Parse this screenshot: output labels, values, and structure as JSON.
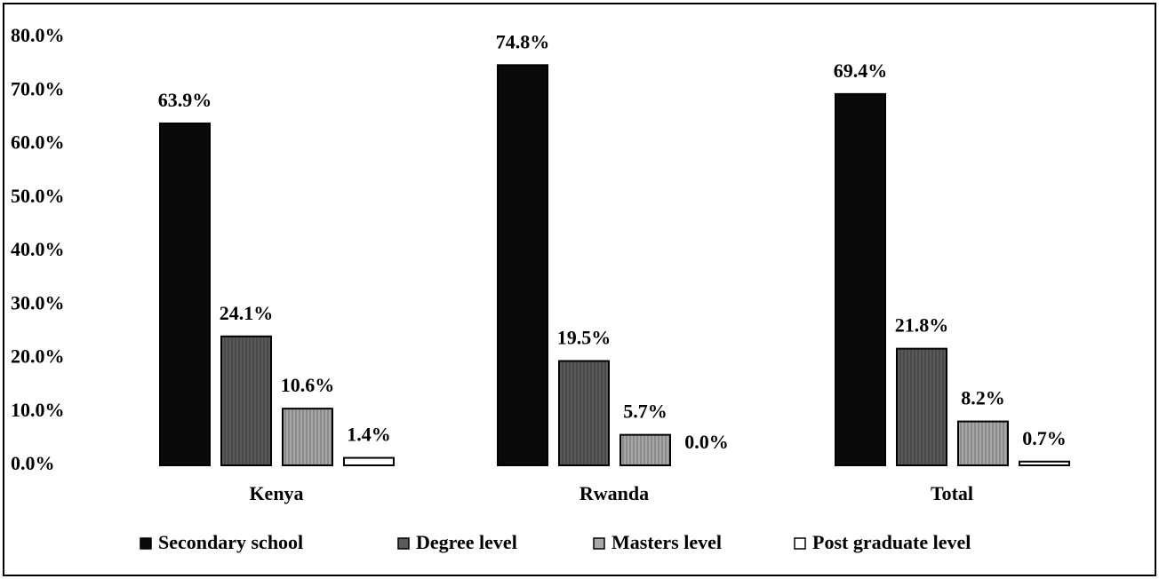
{
  "chart_data": {
    "type": "bar",
    "categories": [
      "Kenya",
      "Rwanda",
      "Total"
    ],
    "series": [
      {
        "name": "Secondary school",
        "color": "#0a0a0a",
        "values": [
          63.9,
          74.8,
          69.4
        ],
        "value_labels": [
          "63.9%",
          "74.8%",
          "69.4%"
        ]
      },
      {
        "name": "Degree level",
        "color": "#5a5a5a",
        "values": [
          24.1,
          19.5,
          21.8
        ],
        "value_labels": [
          "24.1%",
          "19.5%",
          "21.8%"
        ]
      },
      {
        "name": "Masters level",
        "color": "#a8a8a8",
        "values": [
          10.6,
          5.7,
          8.2
        ],
        "value_labels": [
          "10.6%",
          "5.7%",
          "8.2%"
        ]
      },
      {
        "name": "Post graduate level",
        "color": "#ffffff",
        "values": [
          1.4,
          0.0,
          0.7
        ],
        "value_labels": [
          "1.4%",
          "0.0%",
          "0.7%"
        ]
      }
    ],
    "ylim": [
      0,
      80
    ],
    "yticks": [
      {
        "value": 0,
        "label": "0.0%"
      },
      {
        "value": 10,
        "label": "10.0%"
      },
      {
        "value": 20,
        "label": "20.0%"
      },
      {
        "value": 30,
        "label": "30.0%"
      },
      {
        "value": 40,
        "label": "40.0%"
      },
      {
        "value": 50,
        "label": "50.0%"
      },
      {
        "value": 60,
        "label": "60.0%"
      },
      {
        "value": 70,
        "label": "70.0%"
      },
      {
        "value": 80,
        "label": "80.0%"
      }
    ],
    "grid": false,
    "legend": "bottom"
  }
}
